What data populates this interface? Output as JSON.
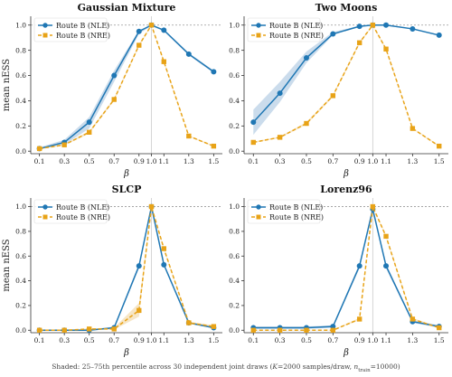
{
  "figure": {
    "footnote_prefix": "Shaded: 25–75th percentile across 30 independent joint draws  (",
    "footnote_k": "K",
    "footnote_mid": "=2000 samples/draw,  ",
    "footnote_n": "n",
    "footnote_sub": "train",
    "footnote_suffix": "=10000)"
  },
  "colors": {
    "nle": "#1f77b4",
    "nre": "#e8a317",
    "nle_band": "#b5cde4",
    "nre_band": "#f3dcae",
    "ref": "#999999"
  },
  "chart_data": [
    {
      "type": "line",
      "title": "Gaussian Mixture",
      "xlabel": "β",
      "ylabel": "mean nESS",
      "x": [
        0.1,
        0.3,
        0.5,
        0.7,
        0.9,
        1.0,
        1.1,
        1.3,
        1.5
      ],
      "x_tick_labels": [
        "0.1",
        "0.3",
        "0.5",
        "0.7",
        "0.9",
        "1.0",
        "1.1",
        "1.3",
        "1.5"
      ],
      "y_ticks": [
        "0.0",
        "0.2",
        "0.4",
        "0.6",
        "0.8",
        "1.0"
      ],
      "ylim": [
        -0.02,
        1.07
      ],
      "reference_line_y": 1.0,
      "reference_line_x": 1.0,
      "legend": "top-left",
      "series": [
        {
          "name": "Route B (NLE)",
          "style": "solid",
          "marker": "circle",
          "values": [
            0.02,
            0.07,
            0.23,
            0.6,
            0.95,
            1.0,
            0.96,
            0.77,
            0.63
          ],
          "band_low": [
            0.015,
            0.05,
            0.18,
            0.55,
            0.93,
            0.995,
            0.95,
            0.76,
            0.62
          ],
          "band_high": [
            0.03,
            0.09,
            0.27,
            0.64,
            0.96,
            1.0,
            0.965,
            0.78,
            0.64
          ]
        },
        {
          "name": "Route B (NRE)",
          "style": "dashed",
          "marker": "square",
          "values": [
            0.02,
            0.05,
            0.15,
            0.41,
            0.84,
            1.0,
            0.71,
            0.12,
            0.04
          ],
          "band_low": [
            0.015,
            0.045,
            0.14,
            0.4,
            0.83,
            0.995,
            0.7,
            0.115,
            0.035
          ],
          "band_high": [
            0.025,
            0.055,
            0.16,
            0.42,
            0.85,
            1.0,
            0.72,
            0.125,
            0.045
          ]
        }
      ]
    },
    {
      "type": "line",
      "title": "Two Moons",
      "xlabel": "β",
      "ylabel": "",
      "x": [
        0.1,
        0.3,
        0.5,
        0.7,
        0.9,
        1.0,
        1.1,
        1.3,
        1.5
      ],
      "x_tick_labels": [
        "0.1",
        "0.3",
        "0.5",
        "0.7",
        "0.9",
        "1.0",
        "1.1",
        "1.3",
        "1.5"
      ],
      "y_ticks": [
        "0.0",
        "0.2",
        "0.4",
        "0.6",
        "0.8",
        "1.0"
      ],
      "ylim": [
        -0.02,
        1.07
      ],
      "reference_line_y": 1.0,
      "reference_line_x": 1.0,
      "legend": "top-left",
      "series": [
        {
          "name": "Route B (NLE)",
          "style": "solid",
          "marker": "circle",
          "values": [
            0.23,
            0.46,
            0.74,
            0.93,
            0.99,
            1.0,
            1.0,
            0.97,
            0.92
          ],
          "band_low": [
            0.13,
            0.39,
            0.7,
            0.92,
            0.99,
            1.0,
            0.995,
            0.965,
            0.915
          ],
          "band_high": [
            0.33,
            0.55,
            0.79,
            0.945,
            0.995,
            1.0,
            1.0,
            0.975,
            0.925
          ]
        },
        {
          "name": "Route B (NRE)",
          "style": "dashed",
          "marker": "square",
          "values": [
            0.07,
            0.11,
            0.22,
            0.44,
            0.86,
            1.0,
            0.81,
            0.18,
            0.04
          ],
          "band_low": [
            0.065,
            0.105,
            0.21,
            0.43,
            0.85,
            0.995,
            0.8,
            0.175,
            0.035
          ],
          "band_high": [
            0.075,
            0.115,
            0.23,
            0.45,
            0.87,
            1.0,
            0.82,
            0.185,
            0.045
          ]
        }
      ]
    },
    {
      "type": "line",
      "title": "SLCP",
      "xlabel": "β",
      "ylabel": "mean nESS",
      "x": [
        0.1,
        0.3,
        0.5,
        0.7,
        0.9,
        1.0,
        1.1,
        1.3,
        1.5
      ],
      "x_tick_labels": [
        "0.1",
        "0.3",
        "0.5",
        "0.7",
        "0.9",
        "1.0",
        "1.1",
        "1.3",
        "1.5"
      ],
      "y_ticks": [
        "0.0",
        "0.2",
        "0.4",
        "0.6",
        "0.8",
        "1.0"
      ],
      "ylim": [
        -0.02,
        1.07
      ],
      "reference_line_y": 1.0,
      "reference_line_x": 1.0,
      "legend": "top-left",
      "series": [
        {
          "name": "Route B (NLE)",
          "style": "solid",
          "marker": "circle",
          "values": [
            0.0,
            0.0,
            0.0,
            0.02,
            0.52,
            1.0,
            0.53,
            0.06,
            0.02
          ],
          "band_low": [
            0.0,
            0.0,
            0.0,
            0.01,
            0.5,
            0.995,
            0.52,
            0.055,
            0.015
          ],
          "band_high": [
            0.003,
            0.003,
            0.003,
            0.03,
            0.54,
            1.0,
            0.54,
            0.065,
            0.025
          ]
        },
        {
          "name": "Route B (NRE)",
          "style": "dashed",
          "marker": "square",
          "values": [
            0.0,
            0.0,
            0.01,
            0.01,
            0.16,
            1.0,
            0.66,
            0.06,
            0.03
          ],
          "band_low": [
            0.0,
            0.0,
            0.005,
            0.005,
            0.11,
            0.995,
            0.65,
            0.05,
            0.02
          ],
          "band_high": [
            0.003,
            0.003,
            0.015,
            0.02,
            0.22,
            1.0,
            0.67,
            0.07,
            0.04
          ]
        }
      ]
    },
    {
      "type": "line",
      "title": "Lorenz96",
      "xlabel": "β",
      "ylabel": "",
      "x": [
        0.1,
        0.3,
        0.5,
        0.7,
        0.9,
        1.0,
        1.1,
        1.3,
        1.5
      ],
      "x_tick_labels": [
        "0.1",
        "0.3",
        "0.5",
        "0.7",
        "0.9",
        "1.0",
        "1.1",
        "1.3",
        "1.5"
      ],
      "y_ticks": [
        "0.0",
        "0.2",
        "0.4",
        "0.6",
        "0.8",
        "1.0"
      ],
      "ylim": [
        -0.02,
        1.07
      ],
      "reference_line_y": 1.0,
      "reference_line_x": 1.0,
      "legend": "top-left",
      "series": [
        {
          "name": "Route B (NLE)",
          "style": "solid",
          "marker": "circle",
          "values": [
            0.02,
            0.02,
            0.02,
            0.03,
            0.52,
            0.98,
            0.52,
            0.07,
            0.03
          ],
          "band_low": [
            0.01,
            0.01,
            0.01,
            0.02,
            0.5,
            0.97,
            0.5,
            0.06,
            0.02
          ],
          "band_high": [
            0.03,
            0.03,
            0.03,
            0.04,
            0.54,
            0.99,
            0.54,
            0.08,
            0.04
          ]
        },
        {
          "name": "Route B (NRE)",
          "style": "dashed",
          "marker": "square",
          "values": [
            0.0,
            0.0,
            0.0,
            0.0,
            0.09,
            1.0,
            0.76,
            0.09,
            0.02
          ],
          "band_low": [
            0.0,
            0.0,
            0.0,
            0.0,
            0.08,
            0.995,
            0.75,
            0.08,
            0.015
          ],
          "band_high": [
            0.003,
            0.003,
            0.003,
            0.003,
            0.1,
            1.0,
            0.77,
            0.1,
            0.025
          ]
        }
      ]
    }
  ]
}
